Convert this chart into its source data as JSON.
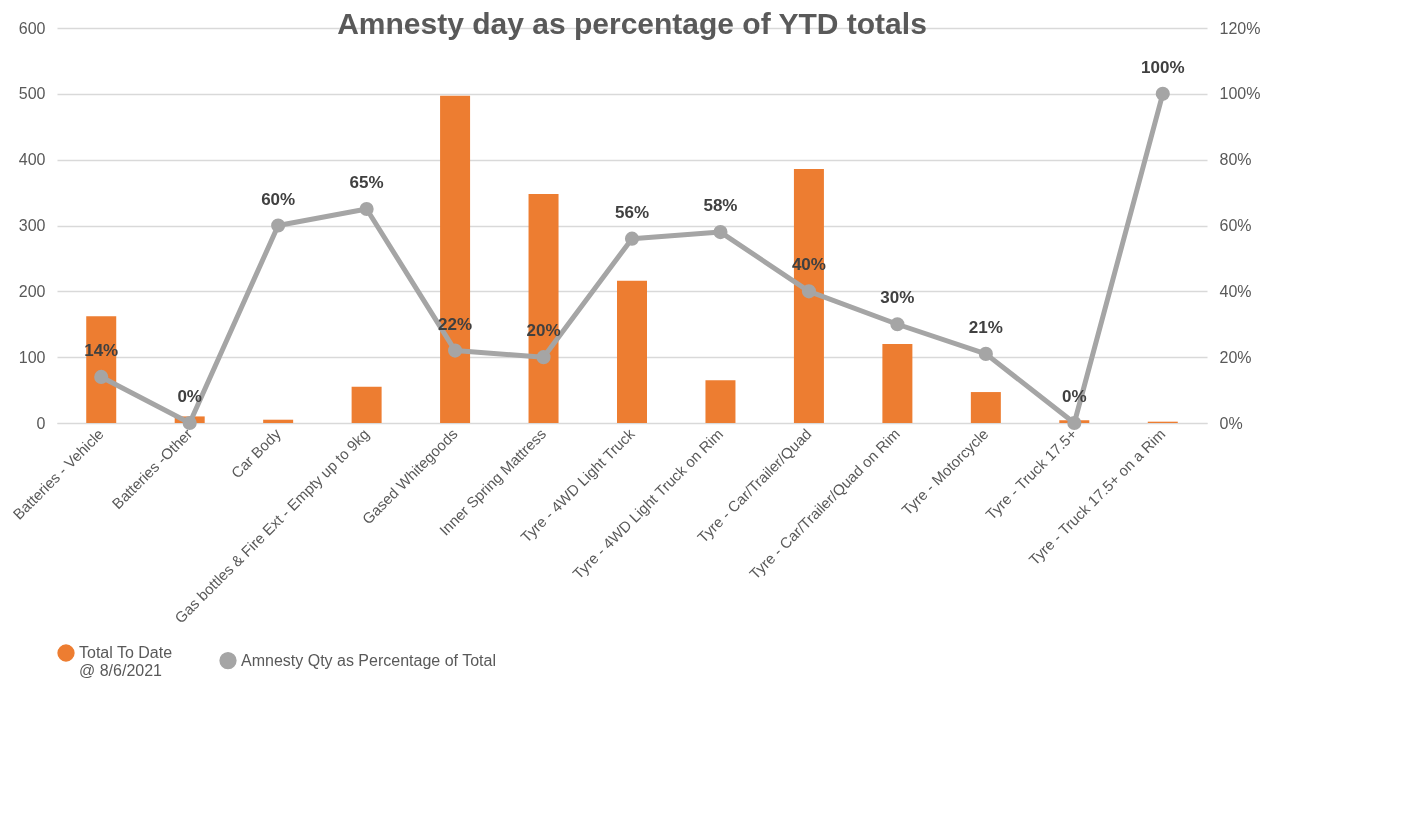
{
  "chart_data": {
    "type": "bar",
    "title": "Amnesty day as percentage of YTD totals",
    "categories": [
      "Batteries - Vehicle",
      "Batteries -Other",
      "Car Body",
      "Gas bottles & Fire Ext - Empty up to 9kg",
      "Gased Whitegoods",
      "Inner Spring Mattress",
      "Tyre - 4WD Light Truck",
      "Tyre - 4WD Light Truck on Rim",
      "Tyre - Car/Trailer/Quad",
      "Tyre - Car/Trailer/Quad on Rim",
      "Tyre - Motorcycle",
      "Tyre - Truck 17.5+",
      "Tyre - Truck 17.5+ on a Rim"
    ],
    "series": [
      {
        "name": "Total To  Date\n@ 8/6/2021",
        "color": "#ed7d31",
        "values": [
          162,
          10,
          5,
          55,
          497,
          348,
          216,
          65,
          386,
          120,
          47,
          4,
          2
        ]
      },
      {
        "name": "Amnesty Qty as Percentage of Total",
        "type": "line",
        "axis": "y2",
        "color": "#a5a5a5",
        "marker": "circle",
        "values": [
          14,
          0,
          60,
          65,
          22,
          20,
          56,
          58,
          40,
          30,
          21,
          0,
          100
        ],
        "value_labels": [
          "14%",
          "0%",
          "60%",
          "65%",
          "22%",
          "20%",
          "56%",
          "58%",
          "40%",
          "30%",
          "21%",
          "0%",
          "100%"
        ]
      }
    ],
    "ylim": [
      0,
      600
    ],
    "yticks": [
      0,
      100,
      200,
      300,
      400,
      500,
      600
    ],
    "y2lim": [
      0,
      120
    ],
    "y2ticks": [
      {
        "value": 0,
        "label": "0%"
      },
      {
        "value": 20,
        "label": "20%"
      },
      {
        "value": 40,
        "label": "40%"
      },
      {
        "value": 60,
        "label": "60%"
      },
      {
        "value": 80,
        "label": "80%"
      },
      {
        "value": 100,
        "label": "100%"
      },
      {
        "value": 120,
        "label": "120%"
      }
    ],
    "grid": "y",
    "legend": "bottom"
  }
}
